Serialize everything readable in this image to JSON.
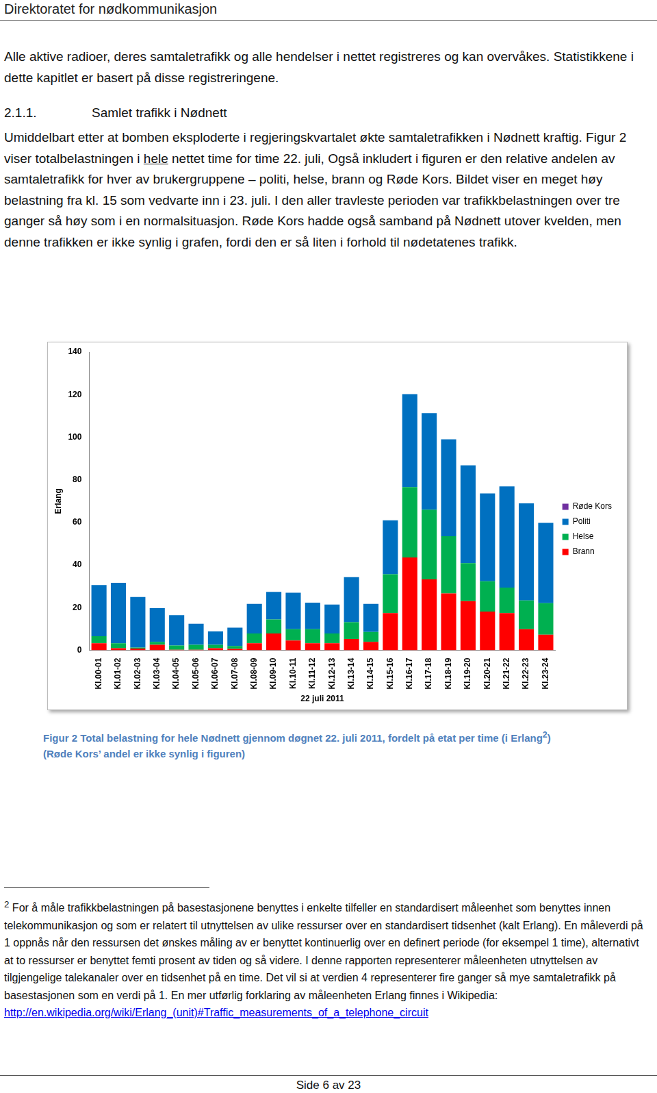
{
  "header": "Direktoratet for nødkommunikasjon",
  "intro": "Alle aktive radioer, deres samtaletrafikk og alle hendelser i nettet registreres og kan overvåkes. Statistikkene i dette kapitlet er basert på disse registreringene.",
  "section": {
    "number": "2.1.1.",
    "title": "Samlet trafikk i Nødnett"
  },
  "paragraph": [
    {
      "text": "Umiddelbart etter at bomben eksploderte i regjeringskvartalet økte samtaletrafikken i Nødnett kraftig. Figur 2 viser totalbelastningen i "
    },
    {
      "text": "hele",
      "underline": true
    },
    {
      "text": " nettet time for time 22. juli, Også inkludert i figuren er den relative andelen av samtaletrafikk for hver av brukergruppene – politi, helse, brann og Røde Kors. Bildet viser en meget høy belastning fra kl. 15 som vedvarte inn i 23. juli. I den aller travleste perioden var trafikkbelastningen over tre ganger så høy som i en normalsituasjon. Røde Kors hadde også samband på Nødnett utover kvelden, men denne trafikken er ikke synlig i grafen, fordi den er så liten i forhold til nødetatenes trafikk."
    }
  ],
  "chart_data": {
    "type": "bar",
    "x_label": "22 juli 2011",
    "y_label": "Erlang",
    "categories": [
      "Kl.00-01",
      "Kl.01-02",
      "Kl.02-03",
      "Kl.03-04",
      "Kl.04-05",
      "Kl.05-06",
      "Kl.06-07",
      "Kl.07-08",
      "Kl.08-09",
      "Kl.09-10",
      "Kl.10-11",
      "Kl.11-12",
      "Kl.12-13",
      "Kl.13-14",
      "Kl.14-15",
      "Kl.15-16",
      "Kl.16-17",
      "Kl.17-18",
      "Kl.18-19",
      "Kl.19-20",
      "Kl.20-21",
      "Kl.21-22",
      "Kl.22-23",
      "Kl.23-24"
    ],
    "series": [
      {
        "name": "Brann",
        "color": "#ff0000",
        "values": [
          3.3,
          1,
          0.8,
          2.6,
          0.3,
          0.3,
          1,
          0.7,
          3.3,
          7.9,
          4.6,
          3.3,
          3.3,
          5.3,
          4,
          17.5,
          43.6,
          33.3,
          26.7,
          23.1,
          18.2,
          17.5,
          9.9,
          7.3
        ]
      },
      {
        "name": "Helse",
        "color": "#00b050",
        "values": [
          3.3,
          2.3,
          0.5,
          1.4,
          2,
          2.3,
          1.6,
          1.3,
          4.6,
          6.6,
          5.3,
          6.6,
          4.6,
          7.9,
          4.6,
          18.2,
          33,
          32.7,
          26.8,
          17.8,
          14.2,
          11.9,
          13.5,
          14.8
        ]
      },
      {
        "name": "Politi",
        "color": "#0070c0",
        "values": [
          24,
          28.4,
          23.7,
          15.8,
          14.2,
          9.9,
          6.3,
          8.6,
          13.9,
          12.9,
          17.1,
          12.5,
          13.6,
          21.1,
          13.2,
          25.3,
          43.6,
          45.3,
          45.5,
          45.9,
          41.2,
          47.5,
          45.6,
          37.7
        ]
      },
      {
        "name": "Røde Kors",
        "color": "#7030a0",
        "values": [
          0,
          0,
          0,
          0,
          0,
          0,
          0,
          0,
          0,
          0,
          0,
          0,
          0,
          0,
          0,
          0,
          0,
          0,
          0,
          0,
          0,
          0,
          0,
          0
        ]
      }
    ],
    "ylim": [
      0,
      140
    ],
    "yticks": [
      0,
      20,
      40,
      60,
      80,
      100,
      120,
      140
    ],
    "stacked": true,
    "grid": false,
    "legend": "right"
  },
  "caption": [
    [
      {
        "text": "Figur 2 Total belastning for hele Nødnett gjennom døgnet 22. juli 2011, fordelt på etat per time (i Erlang"
      },
      {
        "text": "2",
        "superscript": true
      },
      {
        "text": ")"
      }
    ],
    [
      {
        "text": "(Røde Kors’ andel er ikke synlig i figuren)"
      }
    ]
  ],
  "footnote": {
    "marker": "2",
    "text": "For å måle trafikkbelastningen på basestasjonene benyttes i enkelte tilfeller en standardisert måleenhet som benyttes innen telekommunikasjon og som er relatert til utnyttelsen av ulike ressurser over en standardisert tidsenhet (kalt Erlang). En måleverdi på 1 oppnås når den ressursen det ønskes måling av er benyttet kontinuerlig over en definert periode (for eksempel 1 time), alternativt at to ressurser er benyttet femti prosent av tiden og så videre. I denne rapporten representerer måleenheten utnyttelsen av tilgjengelige talekanaler over en tidsenhet på en time. Det vil si at verdien 4 representerer fire ganger så mye samtaletrafikk på basestasjonen som en verdi på 1. En mer utførlig forklaring av måleenheten Erlang finnes i Wikipedia: ",
    "link": "http://en.wikipedia.org/wiki/Erlang_(unit)#Traffic_measurements_of_a_telephone_circuit"
  },
  "footer": "Side 6 av 23"
}
